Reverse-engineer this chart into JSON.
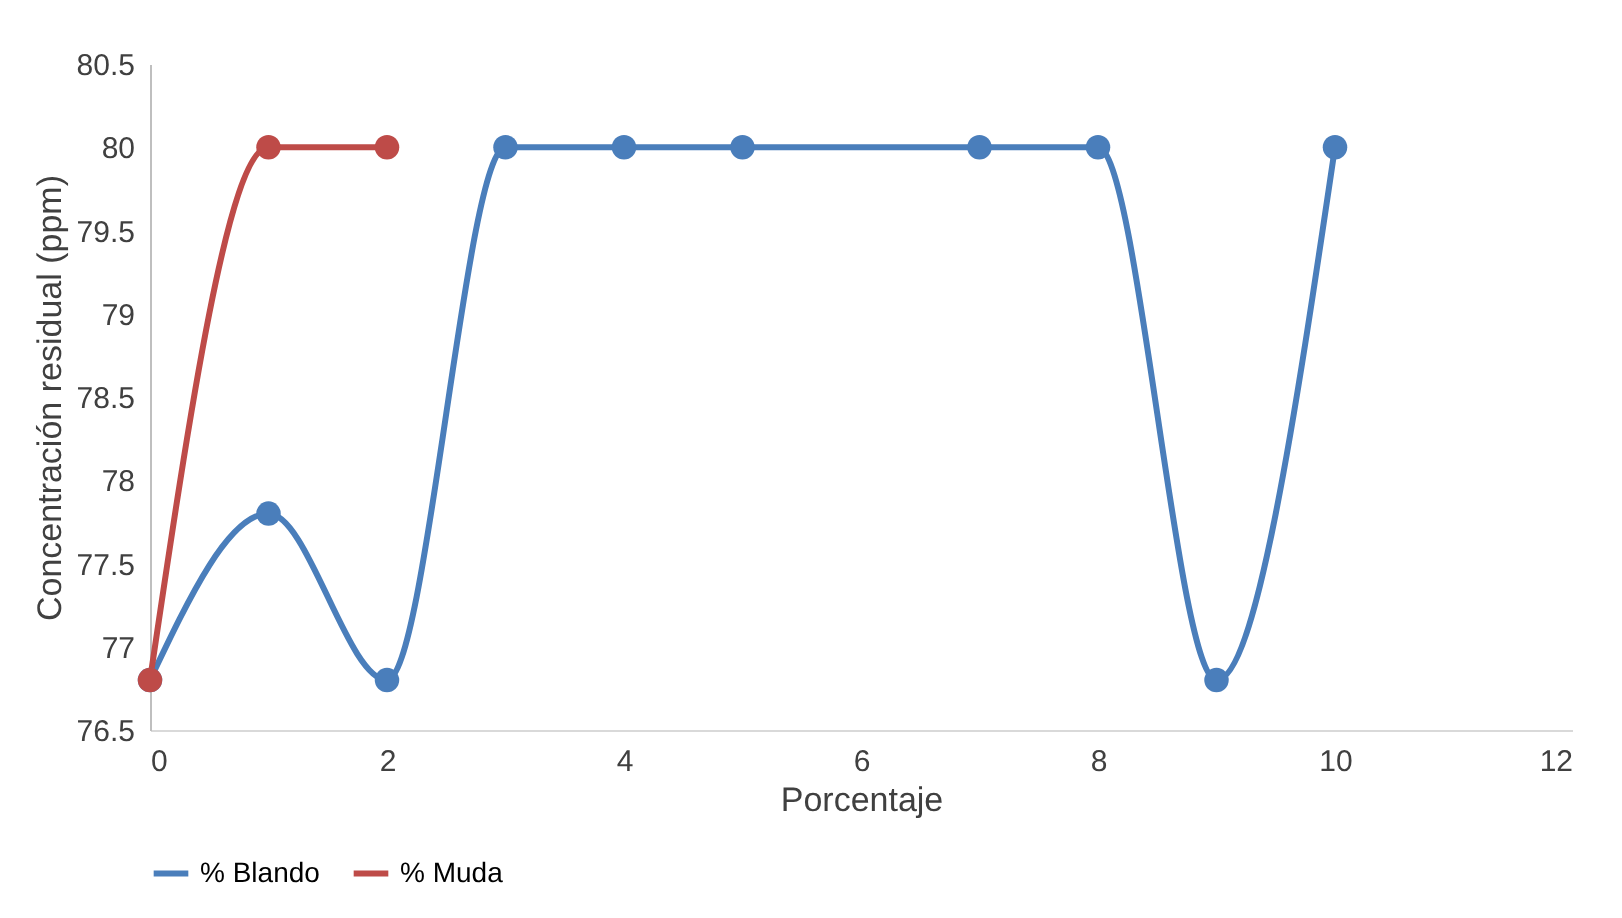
{
  "chart_data": {
    "type": "line",
    "xlabel": "Porcentaje",
    "ylabel": "Concentración residual (ppm)",
    "series": [
      {
        "name": "% Blando",
        "color": "#4a7ebb",
        "x": [
          0,
          1,
          2,
          3,
          4,
          5,
          7,
          8,
          9,
          10
        ],
        "values": [
          76.8,
          77.8,
          76.8,
          80,
          80,
          80,
          80,
          80,
          76.8,
          80
        ]
      },
      {
        "name": "% Muda",
        "color": "#be4b48",
        "x": [
          0,
          1,
          2
        ],
        "values": [
          76.8,
          80,
          80
        ]
      }
    ],
    "xlim": [
      0,
      12
    ],
    "xticks": [
      0,
      2,
      4,
      6,
      8,
      10,
      12
    ],
    "ylim": [
      76.5,
      80.5
    ],
    "yticks": [
      76.5,
      77,
      77.5,
      78,
      78.5,
      79,
      79.5,
      80,
      80.5
    ],
    "grid": false,
    "legend": "bottom",
    "marker": "circle",
    "line_style": "solid"
  }
}
